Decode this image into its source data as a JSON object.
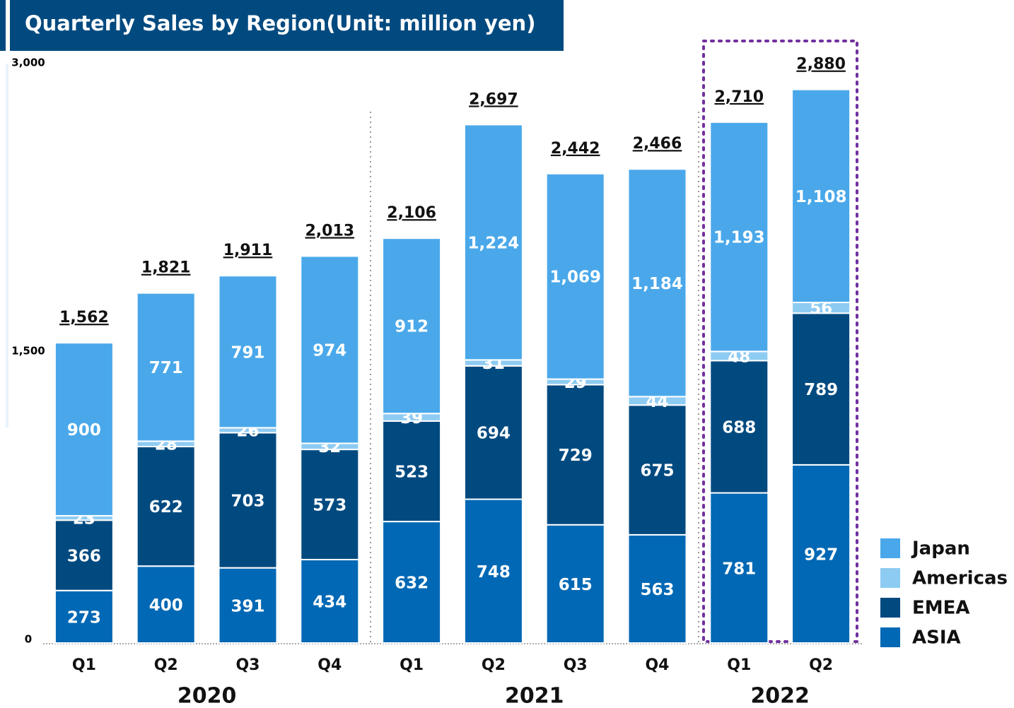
{
  "chart_data": {
    "type": "stacked_bar",
    "title": "Quarterly Sales by Region(Unit: million yen)",
    "groups": [
      {
        "name": "2020",
        "categories": [
          "Q1",
          "Q2",
          "Q3",
          "Q4"
        ]
      },
      {
        "name": "2021",
        "categories": [
          "Q1",
          "Q2",
          "Q3",
          "Q4"
        ]
      },
      {
        "name": "2022",
        "categories": [
          "Q1",
          "Q2"
        ]
      }
    ],
    "series": [
      {
        "name": "Japan",
        "color": "#4aa8ea",
        "values": [
          900,
          771,
          791,
          974,
          912,
          1224,
          1069,
          1184,
          1193,
          1108
        ],
        "value_labels": [
          "900",
          "771",
          "791",
          "974",
          "912",
          "1,224",
          "1,069",
          "1,184",
          "1,193",
          "1,108"
        ]
      },
      {
        "name": "Americas",
        "color": "#8ecbf2",
        "values": [
          23,
          28,
          26,
          32,
          39,
          31,
          29,
          44,
          48,
          56
        ]
      },
      {
        "name": "EMEA",
        "color": "#004a80",
        "values": [
          366,
          622,
          703,
          573,
          523,
          694,
          729,
          675,
          688,
          789
        ]
      },
      {
        "name": "ASIA",
        "color": "#0068b4",
        "values": [
          273,
          400,
          391,
          434,
          632,
          748,
          615,
          563,
          781,
          927
        ]
      }
    ],
    "totals": [
      1562,
      1821,
      1911,
      2013,
      2106,
      2697,
      2442,
      2466,
      2710,
      2880
    ],
    "total_labels": [
      "1,562",
      "1,821",
      "1,911",
      "2,013",
      "2,106",
      "2,697",
      "2,442",
      "2,466",
      "2,710",
      "2,880"
    ],
    "ylim": [
      0,
      3000
    ],
    "yticks": [
      0,
      {
        "value": 1500,
        "label": "1,500"
      },
      {
        "value": 3000,
        "label": "3,000"
      }
    ],
    "legend": "lower right"
  }
}
